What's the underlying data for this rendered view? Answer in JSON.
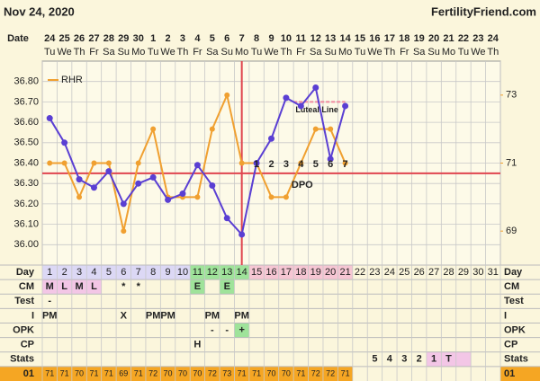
{
  "header": {
    "date": "Nov 24, 2020",
    "site": "FertilityFriend.com"
  },
  "chart_data": {
    "type": "line",
    "date_label": "Date",
    "categories": [
      24,
      25,
      26,
      27,
      28,
      29,
      30,
      1,
      2,
      3,
      4,
      5,
      6,
      7,
      8,
      9,
      10,
      11,
      12,
      13,
      14,
      15,
      16,
      17,
      18,
      19,
      20,
      21,
      22,
      23,
      24
    ],
    "weekdays": [
      "Tu",
      "We",
      "Th",
      "Fr",
      "Sa",
      "Su",
      "Mo",
      "Tu",
      "We",
      "Th",
      "Fr",
      "Sa",
      "Su",
      "Mo",
      "Tu",
      "We",
      "Th",
      "Fr",
      "Sa",
      "Su",
      "Mo",
      "Tu",
      "We",
      "Th",
      "Fr",
      "Sa",
      "Su",
      "Mo",
      "Tu",
      "We",
      "Th"
    ],
    "series": [
      {
        "color": "#5a3fd3",
        "values": [
          36.62,
          36.5,
          36.32,
          36.28,
          36.36,
          36.2,
          36.3,
          36.33,
          36.22,
          36.25,
          36.39,
          36.29,
          36.13,
          36.05,
          36.4,
          36.52,
          36.72,
          36.68,
          36.77,
          36.42,
          36.68,
          null,
          null,
          null,
          null,
          null,
          null,
          null,
          null,
          null,
          null
        ]
      },
      {
        "name": "RHR",
        "color": "#f0a030",
        "axis": "y2",
        "values": [
          71,
          71,
          70,
          71,
          71,
          69,
          71,
          72,
          70,
          70,
          70,
          72,
          73,
          71,
          71,
          70,
          70,
          71,
          72,
          72,
          71,
          null,
          null,
          null,
          null,
          null,
          null,
          null,
          null,
          null,
          null
        ]
      }
    ],
    "ylim": [
      35.9,
      36.9
    ],
    "yticks": [
      {
        "value": 36.0,
        "label": "36.00"
      },
      {
        "value": 36.1,
        "label": "36.10"
      },
      {
        "value": 36.2,
        "label": "36.20"
      },
      {
        "value": 36.3,
        "label": "36.30"
      },
      {
        "value": 36.4,
        "label": "36.40"
      },
      {
        "value": 36.5,
        "label": "36.50"
      },
      {
        "value": 36.6,
        "label": "36.60"
      },
      {
        "value": 36.7,
        "label": "36.70"
      },
      {
        "value": 36.8,
        "label": "36.80"
      }
    ],
    "y2lim": [
      68,
      74
    ],
    "y2ticks": [
      69,
      71,
      73
    ],
    "coverline": 36.35,
    "line_color": "#e0454f",
    "luteal_line": {
      "label": "Luteal Line",
      "value": 36.7,
      "color": "#f08aa0"
    },
    "dpo": {
      "label": "DPO",
      "values": [
        null,
        null,
        null,
        null,
        null,
        null,
        null,
        null,
        null,
        null,
        null,
        null,
        null,
        null,
        1,
        2,
        3,
        4,
        5,
        6,
        7,
        null,
        null,
        null,
        null,
        null,
        null,
        null,
        null,
        null,
        null
      ]
    }
  },
  "table": {
    "row_labels": [
      "Day",
      "CM",
      "Test",
      "I",
      "OPK",
      "CP",
      "Stats",
      "01"
    ],
    "rows": [
      [
        1,
        2,
        3,
        4,
        5,
        6,
        7,
        8,
        9,
        10,
        11,
        12,
        13,
        14,
        15,
        16,
        17,
        18,
        19,
        20,
        21,
        22,
        23,
        24,
        25,
        26,
        27,
        28,
        29,
        30,
        31
      ],
      [
        "M",
        "L",
        "M",
        "L",
        null,
        "*",
        "*",
        null,
        null,
        null,
        "E",
        null,
        "E",
        null,
        null,
        null,
        null,
        null,
        null,
        null,
        null,
        null,
        null,
        null,
        null,
        null,
        null,
        null,
        null,
        null,
        null
      ],
      [
        "-",
        null,
        null,
        null,
        null,
        null,
        null,
        null,
        null,
        null,
        null,
        null,
        null,
        null,
        null,
        null,
        null,
        null,
        null,
        null,
        null,
        null,
        null,
        null,
        null,
        null,
        null,
        null,
        null,
        null,
        null
      ],
      [
        "PM",
        null,
        null,
        null,
        null,
        "X",
        null,
        "PM",
        "PM",
        null,
        null,
        "PM",
        null,
        "PM",
        null,
        null,
        null,
        null,
        null,
        null,
        null,
        null,
        null,
        null,
        null,
        null,
        null,
        null,
        null,
        null,
        null
      ],
      [
        null,
        null,
        null,
        null,
        null,
        null,
        null,
        null,
        null,
        null,
        null,
        "-",
        "-",
        "+",
        null,
        null,
        null,
        null,
        null,
        null,
        null,
        null,
        null,
        null,
        null,
        null,
        null,
        null,
        null,
        null,
        null
      ],
      [
        null,
        null,
        null,
        null,
        null,
        null,
        null,
        null,
        null,
        null,
        "H",
        null,
        null,
        null,
        null,
        null,
        null,
        null,
        null,
        null,
        null,
        null,
        null,
        null,
        null,
        null,
        null,
        null,
        null,
        null,
        null
      ],
      [
        null,
        null,
        null,
        null,
        null,
        null,
        null,
        null,
        null,
        null,
        null,
        null,
        null,
        null,
        null,
        null,
        null,
        null,
        null,
        null,
        null,
        null,
        "5",
        "4",
        "3",
        "2",
        "1",
        "T",
        null,
        null,
        null
      ]
    ],
    "fills": [
      [
        "#dcd8f5",
        "#dcd8f5",
        "#dcd8f5",
        "#dcd8f5",
        "#dcd8f5",
        "#dcd8f5",
        "#dcd8f5",
        "#dcd8f5",
        "#dcd8f5",
        "#dcd8f5",
        "#9fe39a",
        "#9fe39a",
        "#9fe39a",
        "#9fe39a",
        "#f6c6d3",
        "#f6c6d3",
        "#f6c6d3",
        "#f6c6d3",
        "#f6c6d3",
        "#f6c6d3",
        "#f6c6d3",
        null,
        null,
        null,
        null,
        null,
        null,
        null,
        null,
        null,
        null
      ],
      [
        "#f3c6e6",
        "#f3c6e6",
        "#f3c6e6",
        "#f3c6e6",
        null,
        null,
        null,
        null,
        null,
        null,
        "#9fe39a",
        null,
        "#9fe39a",
        null,
        null,
        null,
        null,
        null,
        null,
        null,
        null,
        null,
        null,
        null,
        null,
        null,
        null,
        null,
        null,
        null,
        null
      ],
      null,
      null,
      [
        null,
        null,
        null,
        null,
        null,
        null,
        null,
        null,
        null,
        null,
        null,
        null,
        null,
        "#9fe39a",
        null,
        null,
        null,
        null,
        null,
        null,
        null,
        null,
        null,
        null,
        null,
        null,
        null,
        null,
        null,
        null,
        null
      ],
      null,
      [
        null,
        null,
        null,
        null,
        null,
        null,
        null,
        null,
        null,
        null,
        null,
        null,
        null,
        null,
        null,
        null,
        null,
        null,
        null,
        null,
        null,
        null,
        null,
        null,
        null,
        null,
        "#f3c6e6",
        "#f3c6e6",
        "#f3c6e6",
        null,
        null
      ]
    ],
    "rhr_fill": "#f5a623"
  }
}
